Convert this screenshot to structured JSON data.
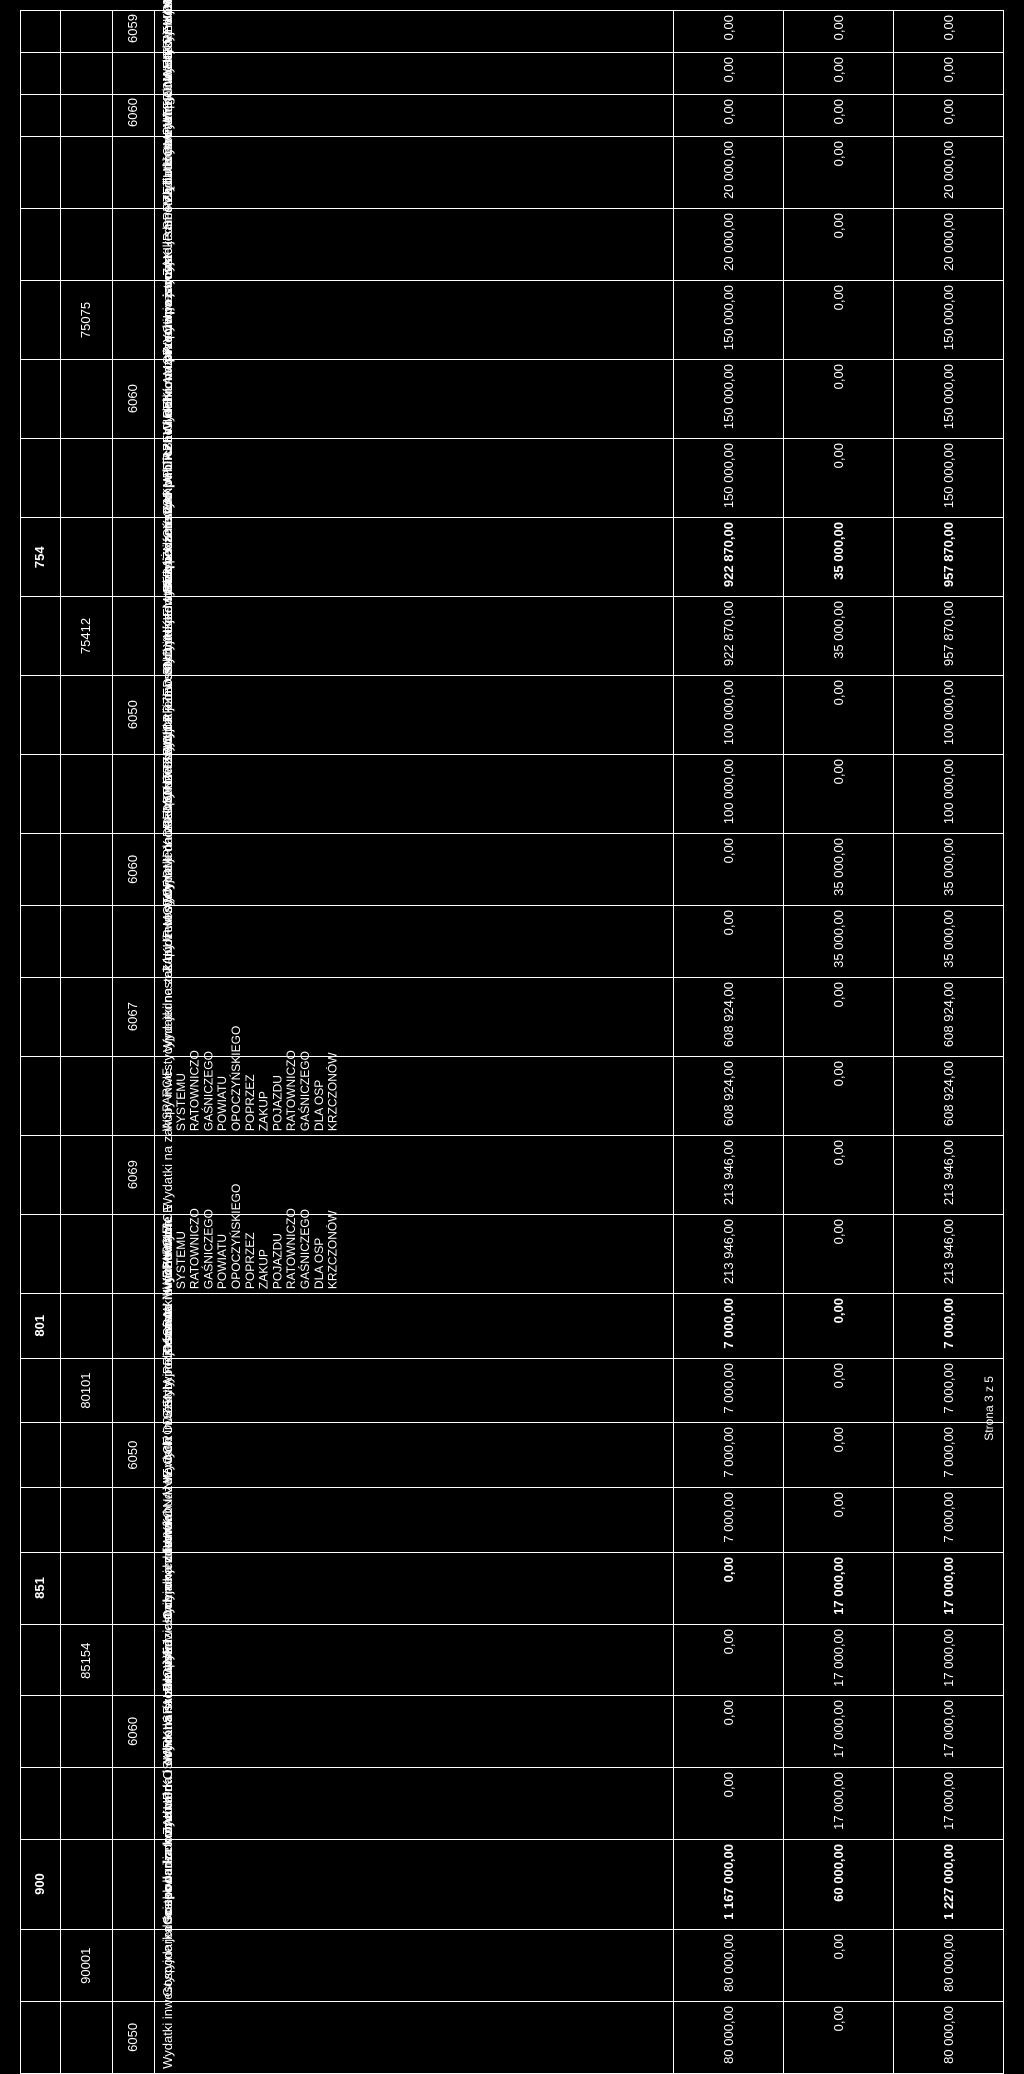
{
  "footer": "Strona 3 z 5",
  "rows": [
    {
      "bold": false,
      "tall": false,
      "dzial": "",
      "rozdz": "",
      "parag": "6059",
      "nazwa": "WYKONANIE REMONTU BUDYNKU UGiM W DRZEWICY",
      "c1": "0,00",
      "c2": "0,00",
      "c3": "0,00"
    },
    {
      "bold": false,
      "tall": false,
      "dzial": "",
      "rozdz": "",
      "parag": "",
      "nazwa": "Wydatki inwestycyjne jednostek budżetowych",
      "c1": "0,00",
      "c2": "0,00",
      "c3": "0,00"
    },
    {
      "bold": false,
      "tall": false,
      "dzial": "",
      "rozdz": "",
      "parag": "6060",
      "nazwa": "WYKONANIE REMONTU BUDYNKU UGiM W DRZEWICA",
      "c1": "0,00",
      "c2": "0,00",
      "c3": "0,00"
    },
    {
      "bold": false,
      "tall": false,
      "dzial": "",
      "rozdz": "",
      "parag": "",
      "nazwa": "Wydatki na zakupy inwestycyjne jednostek budżetowych",
      "c1": "20 000,00",
      "c2": "0,00",
      "c3": "20 000,00"
    },
    {
      "bold": false,
      "tall": false,
      "dzial": "",
      "rozdz": "",
      "parag": "",
      "nazwa": "ZAKUP SPRZĘTU KOMPUTEROWEGO",
      "c1": "20 000,00",
      "c2": "0,00",
      "c3": "20 000,00"
    },
    {
      "bold": false,
      "tall": false,
      "dzial": "",
      "rozdz": "75075",
      "parag": "",
      "nazwa": "Promocja jednostek samorządu terytorialnego",
      "c1": "150 000,00",
      "c2": "0,00",
      "c3": "150 000,00"
    },
    {
      "bold": false,
      "tall": false,
      "dzial": "",
      "rozdz": "",
      "parag": "6060",
      "nazwa": "Wydatki na zakupy inwestycyjne jednostek budżetowych",
      "c1": "150 000,00",
      "c2": "0,00",
      "c3": "150 000,00"
    },
    {
      "bold": false,
      "tall": false,
      "dzial": "",
      "rozdz": "",
      "parag": "",
      "nazwa": "ZAKUP TABLIC REKLAMOWYCH",
      "c1": "150 000,00",
      "c2": "0,00",
      "c3": "150 000,00"
    },
    {
      "bold": true,
      "tall": false,
      "dzial": "754",
      "rozdz": "",
      "parag": "",
      "nazwa": "Bezpieczeństwo publiczne i ochrona przeciwpożarowa",
      "c1": "922 870,00",
      "c2": "35 000,00",
      "c3": "957 870,00"
    },
    {
      "bold": false,
      "tall": false,
      "dzial": "",
      "rozdz": "75412",
      "parag": "",
      "nazwa": "Ochotnicze straże pożarne",
      "c1": "922 870,00",
      "c2": "35 000,00",
      "c3": "957 870,00"
    },
    {
      "bold": false,
      "tall": false,
      "dzial": "",
      "rozdz": "",
      "parag": "6050",
      "nazwa": "Wydatki inwestycyjne jednostek budżetowych",
      "c1": "100 000,00",
      "c2": "0,00",
      "c3": "100 000,00"
    },
    {
      "bold": false,
      "tall": false,
      "dzial": "",
      "rozdz": "",
      "parag": "",
      "nazwa": "REMONT PLACU PRZED BUDYNKIEM STRAŻNICY OSP W DRZEWICY",
      "c1": "100 000,00",
      "c2": "0,00",
      "c3": "100 000,00"
    },
    {
      "bold": false,
      "tall": false,
      "dzial": "",
      "rozdz": "",
      "parag": "6060",
      "nazwa": "Wydatki na zakupy inwestycyjne jednostek budżetowych",
      "c1": "0,00",
      "c2": "35 000,00",
      "c3": "35 000,00"
    },
    {
      "bold": false,
      "tall": false,
      "dzial": "",
      "rozdz": "",
      "parag": "",
      "nazwa": "ZAKUP MOTOPOMPY DO OSP DRZEWICA",
      "c1": "0,00",
      "c2": "35 000,00",
      "c3": "35 000,00"
    },
    {
      "bold": false,
      "tall": false,
      "dzial": "",
      "rozdz": "",
      "parag": "6067",
      "nazwa": "Wydatki na zakupy inwestycyjne jednostek budżetowych",
      "c1": "608 924,00",
      "c2": "0,00",
      "c3": "608 924,00"
    },
    {
      "bold": false,
      "tall": true,
      "dzial": "",
      "rozdz": "",
      "parag": "",
      "nazwa": "WSPARCIE SYSTEMU RATOWNICZO GAŚNICZEGO POWIATU OPOCZYŃSKIEGO POPRZEZ ZAKUP POJAZDU RATOWNICZO GAŚNICZEGO DLA OSP KRZCZONÓW",
      "c1": "608 924,00",
      "c2": "0,00",
      "c3": "608 924,00"
    },
    {
      "bold": false,
      "tall": false,
      "dzial": "",
      "rozdz": "",
      "parag": "6069",
      "nazwa": "Wydatki na zakupy inwestycyjne jednostek budżetowych",
      "c1": "213 946,00",
      "c2": "0,00",
      "c3": "213 946,00"
    },
    {
      "bold": false,
      "tall": true,
      "dzial": "",
      "rozdz": "",
      "parag": "",
      "nazwa": "WSPARCIE SYSTEMU RATOWNICZO GAŚNICZEGO POWIATU OPOCZYŃSKIEGO POPRZEZ ZAKUP POJAZDU RATOWNICZO GAŚNICZEGO DLA OSP KRZCZONÓW",
      "c1": "213 946,00",
      "c2": "0,00",
      "c3": "213 946,00"
    },
    {
      "bold": true,
      "tall": false,
      "dzial": "801",
      "rozdz": "",
      "parag": "",
      "nazwa": "Oświata i wychowanie",
      "c1": "7 000,00",
      "c2": "0,00",
      "c3": "7 000,00"
    },
    {
      "bold": false,
      "tall": false,
      "dzial": "",
      "rozdz": "80101",
      "parag": "",
      "nazwa": "Szkoły podstawowe",
      "c1": "7 000,00",
      "c2": "0,00",
      "c3": "7 000,00"
    },
    {
      "bold": false,
      "tall": false,
      "dzial": "",
      "rozdz": "",
      "parag": "6050",
      "nazwa": "Wydatki inwestycyjne jednostek budżetowych",
      "c1": "7 000,00",
      "c2": "0,00",
      "c3": "7 000,00"
    },
    {
      "bold": false,
      "tall": false,
      "dzial": "",
      "rozdz": "",
      "parag": "",
      "nazwa": "WYKONANIE OGRODZENIA PRZY SP W M. IDZIKOWICE",
      "c1": "7 000,00",
      "c2": "0,00",
      "c3": "7 000,00"
    },
    {
      "bold": true,
      "tall": false,
      "dzial": "851",
      "rozdz": "",
      "parag": "",
      "nazwa": "Ochrona zdrowia",
      "c1": "0,00",
      "c2": "17 000,00",
      "c3": "17 000,00"
    },
    {
      "bold": false,
      "tall": false,
      "dzial": "",
      "rozdz": "85154",
      "parag": "",
      "nazwa": "Przeciwdziałanie alkoholizmowi",
      "c1": "0,00",
      "c2": "17 000,00",
      "c3": "17 000,00"
    },
    {
      "bold": false,
      "tall": false,
      "dzial": "",
      "rozdz": "",
      "parag": "6060",
      "nazwa": "Wydatki na zakupy inwestycyjne jednostek budżetowych",
      "c1": "0,00",
      "c2": "17 000,00",
      "c3": "17 000,00"
    },
    {
      "bold": false,
      "tall": false,
      "dzial": "",
      "rozdz": "",
      "parag": "",
      "nazwa": "ZAKUP KOSIARKI SPALINOWEJ",
      "c1": "0,00",
      "c2": "17 000,00",
      "c3": "17 000,00"
    },
    {
      "bold": true,
      "tall": false,
      "dzial": "900",
      "rozdz": "",
      "parag": "",
      "nazwa": "Gospodarka komunalna i ochrona środowiska",
      "c1": "1 167 000,00",
      "c2": "60 000,00",
      "c3": "1 227 000,00"
    },
    {
      "bold": false,
      "tall": false,
      "dzial": "",
      "rozdz": "90001",
      "parag": "",
      "nazwa": "Gospodarka ściekowa i ochrona wód",
      "c1": "80 000,00",
      "c2": "0,00",
      "c3": "80 000,00"
    },
    {
      "bold": false,
      "tall": false,
      "dzial": "",
      "rozdz": "",
      "parag": "6050",
      "nazwa": "Wydatki inwestycyjne jednostek budżetowych",
      "c1": "80 000,00",
      "c2": "0,00",
      "c3": "80 000,00"
    }
  ]
}
